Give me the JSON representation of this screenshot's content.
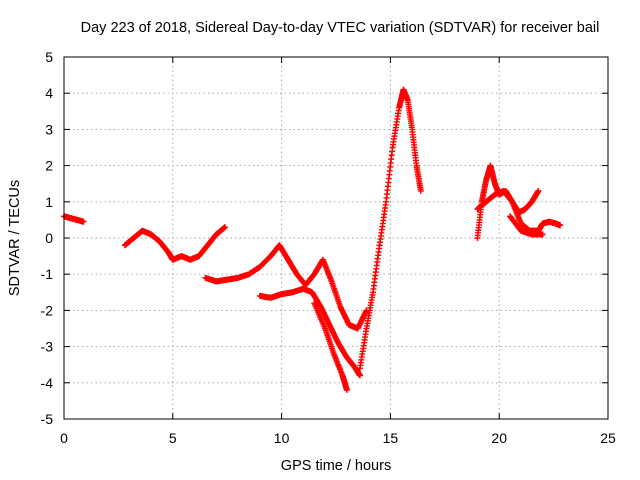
{
  "chart_data": {
    "type": "scatter",
    "title": "Day 223 of 2018, Sidereal Day-to-day VTEC variation (SDTVAR) for receiver bail",
    "xlabel": "GPS time / hours",
    "ylabel": "SDTVAR / TECUs",
    "xlim": [
      0,
      25
    ],
    "ylim": [
      -5,
      5
    ],
    "xticks": [
      0,
      5,
      10,
      15,
      20,
      25
    ],
    "xtick_labels": [
      "0",
      "5",
      "10",
      "15",
      "20",
      "25"
    ],
    "yticks": [
      -5,
      -4,
      -3,
      -2,
      -1,
      0,
      1,
      2,
      3,
      4,
      5
    ],
    "ytick_labels": [
      "-5",
      "-4",
      "-3",
      "-2",
      "-1",
      "0",
      "1",
      "2",
      "3",
      "4",
      "5"
    ],
    "grid": true,
    "marker": "+",
    "color": "#ff0000",
    "series": [
      {
        "name": "trace-1",
        "x": [
          0.0,
          0.3,
          0.6,
          0.9
        ],
        "y": [
          0.6,
          0.55,
          0.5,
          0.45
        ]
      },
      {
        "name": "trace-2",
        "x": [
          2.8,
          3.2,
          3.6,
          4.0,
          4.4,
          4.8,
          5.0,
          5.4,
          5.8,
          6.2,
          6.6,
          7.0,
          7.4
        ],
        "y": [
          -0.2,
          0.0,
          0.2,
          0.1,
          -0.1,
          -0.4,
          -0.6,
          -0.5,
          -0.6,
          -0.5,
          -0.2,
          0.1,
          0.3
        ]
      },
      {
        "name": "trace-3",
        "x": [
          6.5,
          7.0,
          7.5,
          8.0,
          8.5,
          9.0,
          9.5,
          9.9
        ],
        "y": [
          -1.1,
          -1.2,
          -1.15,
          -1.1,
          -1.0,
          -0.8,
          -0.5,
          -0.2
        ]
      },
      {
        "name": "trace-4",
        "x": [
          9.9,
          10.3,
          10.7,
          11.1,
          11.5,
          11.9,
          12.3,
          12.7,
          13.1,
          13.5,
          13.9
        ],
        "y": [
          -0.2,
          -0.6,
          -1.0,
          -1.3,
          -1.0,
          -0.6,
          -1.2,
          -1.9,
          -2.4,
          -2.5,
          -2.0
        ]
      },
      {
        "name": "trace-5",
        "x": [
          9.0,
          9.5,
          10.0,
          10.5,
          11.0,
          11.4,
          11.8,
          12.2,
          12.6,
          13.0,
          13.4,
          13.6
        ],
        "y": [
          -1.6,
          -1.65,
          -1.55,
          -1.5,
          -1.4,
          -1.5,
          -1.9,
          -2.4,
          -2.9,
          -3.3,
          -3.6,
          -3.8
        ]
      },
      {
        "name": "trace-6",
        "x": [
          11.5,
          12.0,
          12.4,
          12.8,
          13.0
        ],
        "y": [
          -1.8,
          -2.5,
          -3.2,
          -3.8,
          -4.2
        ]
      },
      {
        "name": "trace-7",
        "x": [
          13.6,
          13.9,
          14.2,
          14.5,
          14.8,
          15.1,
          15.4,
          15.6,
          15.8,
          16.0,
          16.2,
          16.4
        ],
        "y": [
          -3.6,
          -2.5,
          -1.5,
          -0.2,
          1.0,
          2.5,
          3.6,
          4.1,
          3.8,
          3.0,
          2.0,
          1.3
        ]
      },
      {
        "name": "trace-8",
        "x": [
          19.0,
          19.2,
          19.4,
          19.6,
          19.8,
          20.0,
          20.3,
          20.6,
          20.9,
          21.2,
          21.5,
          21.8
        ],
        "y": [
          0.0,
          1.0,
          1.6,
          2.0,
          1.5,
          1.2,
          1.3,
          1.0,
          0.7,
          0.8,
          1.0,
          1.3
        ]
      },
      {
        "name": "trace-9",
        "x": [
          19.0,
          19.4,
          19.8,
          20.2,
          20.6,
          21.0,
          21.4,
          21.8,
          22.0,
          22.3,
          22.6,
          22.8
        ],
        "y": [
          0.8,
          1.0,
          1.2,
          1.3,
          1.0,
          0.4,
          0.2,
          0.2,
          0.4,
          0.45,
          0.4,
          0.35
        ]
      },
      {
        "name": "trace-10",
        "x": [
          20.5,
          21.0,
          21.5,
          22.0
        ],
        "y": [
          0.6,
          0.2,
          0.1,
          0.1
        ]
      }
    ]
  }
}
